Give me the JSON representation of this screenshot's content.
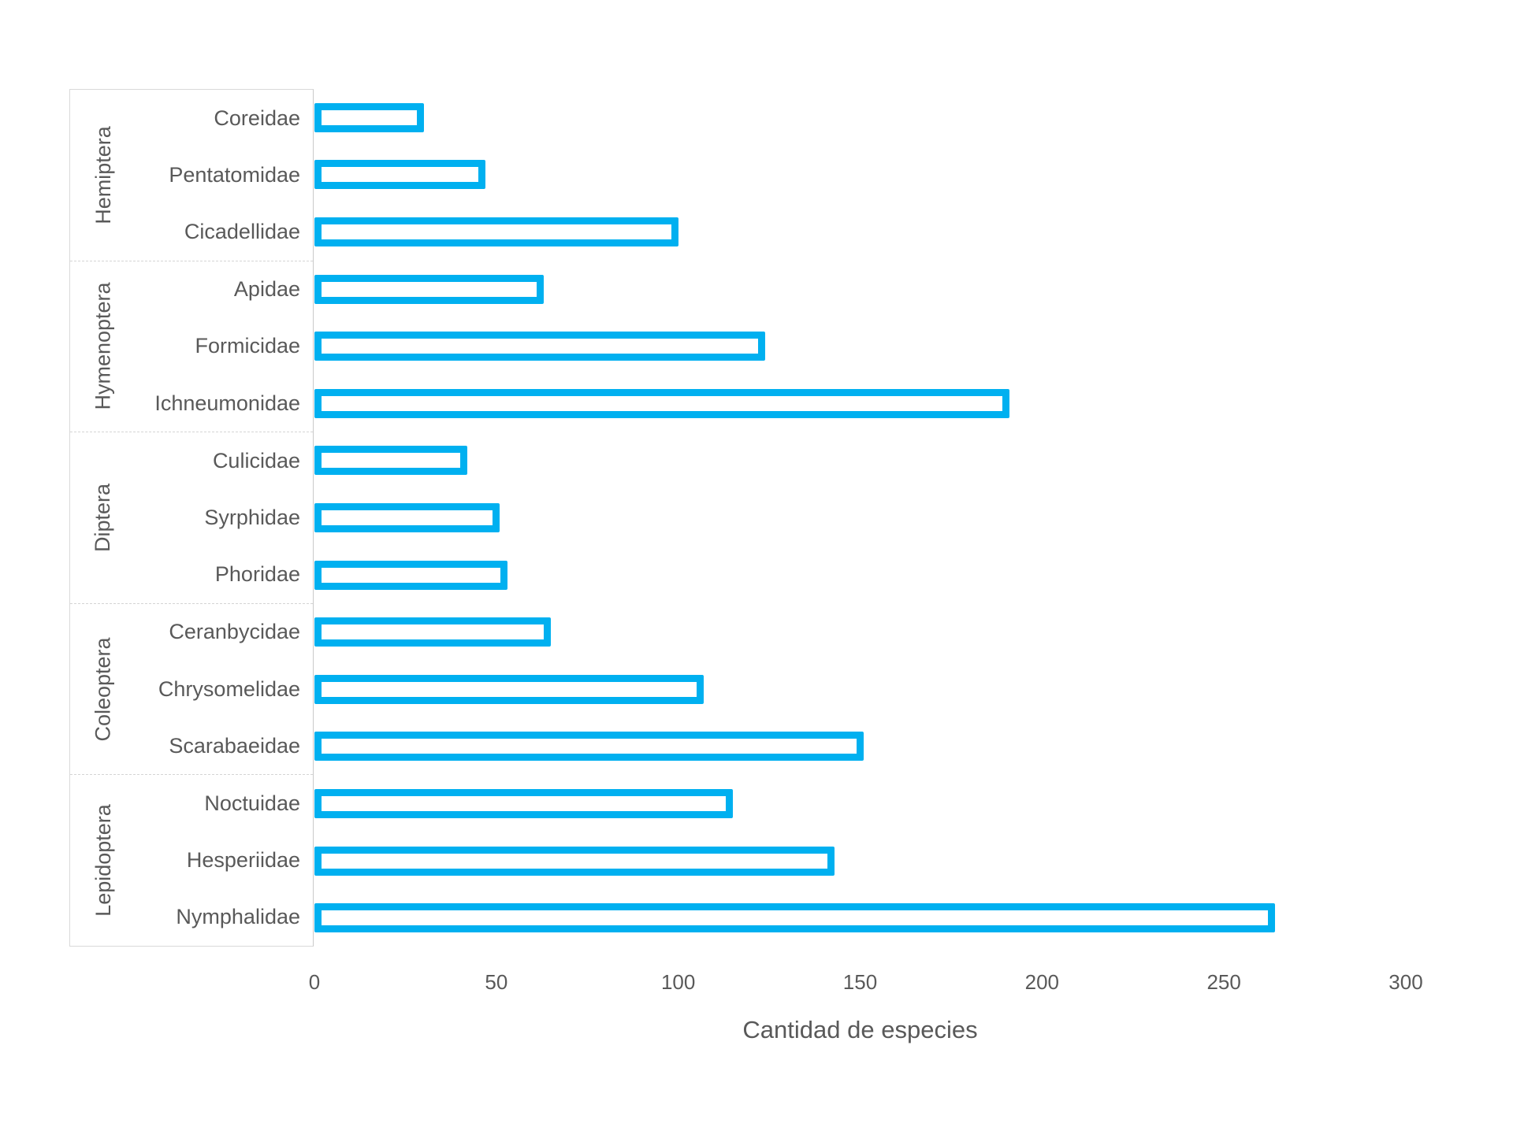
{
  "chart_data": {
    "type": "bar",
    "orientation": "horizontal",
    "title": "",
    "xlabel": "Cantidad de especies",
    "ylabel": "",
    "xlim": [
      0,
      300
    ],
    "xticks": [
      0,
      50,
      100,
      150,
      200,
      250,
      300
    ],
    "grid": false,
    "legend": "none",
    "bar_fill": "#FFFFFF",
    "bar_border_color": "#00B0F0",
    "groups": [
      {
        "name": "Hemiptera",
        "families": [
          "Coreidae",
          "Pentatomidae",
          "Cicadellidae"
        ],
        "values": [
          30,
          47,
          100
        ]
      },
      {
        "name": "Hymenoptera",
        "families": [
          "Apidae",
          "Formicidae",
          "Ichneumonidae"
        ],
        "values": [
          63,
          124,
          191
        ]
      },
      {
        "name": "Diptera",
        "families": [
          "Culicidae",
          "Syrphidae",
          "Phoridae"
        ],
        "values": [
          42,
          51,
          53
        ]
      },
      {
        "name": "Coleoptera",
        "families": [
          "Ceranbycidae",
          "Chrysomelidae",
          "Scarabaeidae"
        ],
        "values": [
          65,
          107,
          151
        ]
      },
      {
        "name": "Lepidoptera",
        "families": [
          "Noctuidae",
          "Hesperiidae",
          "Nymphalidae"
        ],
        "values": [
          115,
          143,
          264
        ]
      }
    ]
  },
  "colors": {
    "bar_border": "#00B0F0",
    "text": "#595959",
    "panel_border": "#D9D9D9",
    "separator": "#D4D4D4"
  },
  "axis": {
    "title": "Cantidad de especies",
    "tick_labels": [
      "0",
      "50",
      "100",
      "150",
      "200",
      "250",
      "300"
    ]
  }
}
